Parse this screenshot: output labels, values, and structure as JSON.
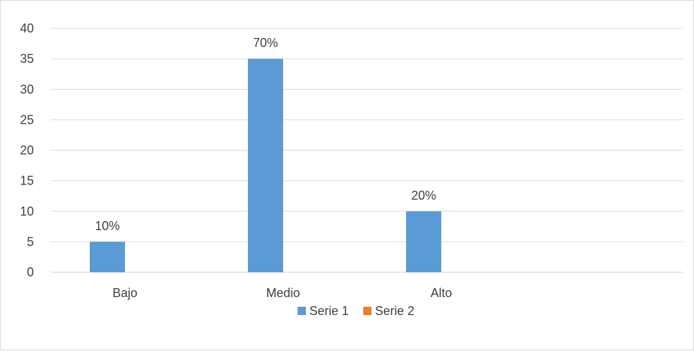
{
  "chart_data": {
    "type": "bar",
    "categories": [
      "Bajo",
      "Medio",
      "Alto"
    ],
    "series": [
      {
        "name": "Serie 1",
        "values": [
          5,
          35,
          10
        ],
        "color": "#5b9bd5"
      },
      {
        "name": "Serie 2",
        "values": [
          0,
          0,
          0
        ],
        "color": "#ed7d31"
      }
    ],
    "data_labels": [
      "10%",
      "70%",
      "20%"
    ],
    "title": "",
    "xlabel": "",
    "ylabel": "",
    "ylim": [
      0,
      40
    ],
    "yticks": [
      0,
      5,
      10,
      15,
      20,
      25,
      30,
      35,
      40
    ],
    "grid": true,
    "legend_position": "bottom"
  }
}
